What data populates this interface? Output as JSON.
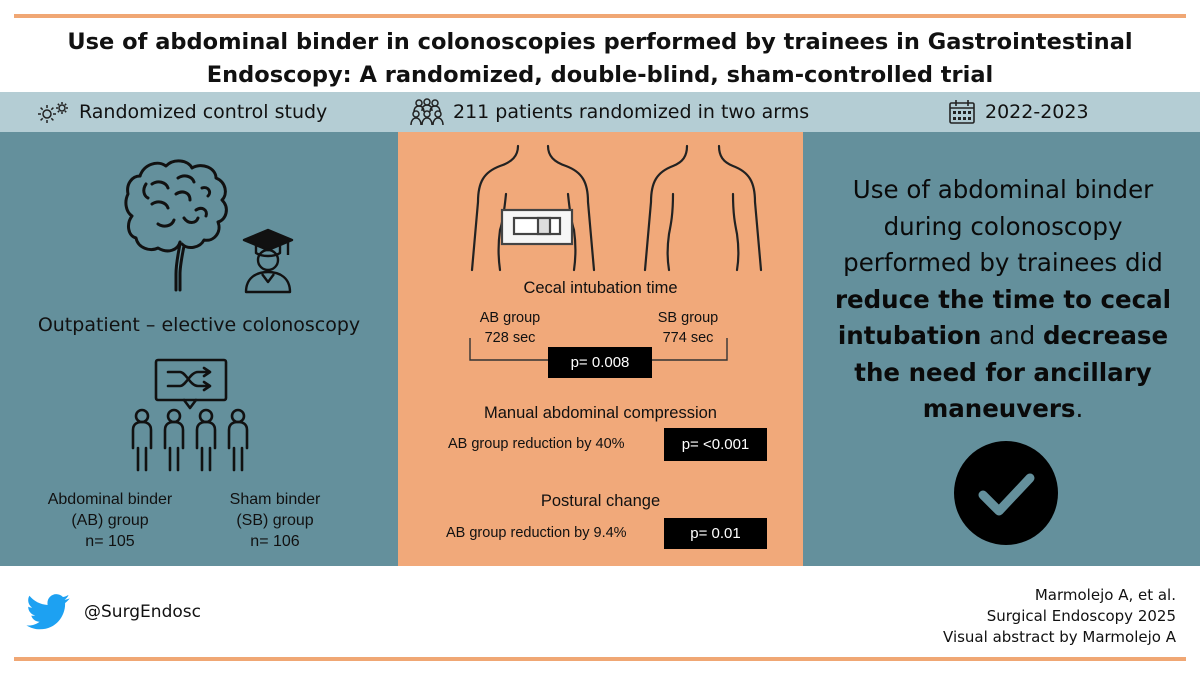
{
  "header": {
    "title_line1": "Use of abdominal binder in colonoscopies performed by trainees in Gastrointestinal",
    "title_line2": "Endoscopy: A randomized, double-blind, sham-controlled trial"
  },
  "info_bar": {
    "study_type": "Randomized control study",
    "study_type_icon": "gears-icon",
    "patients": "211 patients randomized in two arms",
    "patients_icon": "people-group-icon",
    "period": "2022-2023",
    "period_icon": "calendar-icon"
  },
  "left_panel": {
    "setting": "Outpatient – elective colonoscopy",
    "arms": [
      {
        "line1": "Abdominal binder",
        "line2": "(AB) group",
        "n": "n= 105"
      },
      {
        "line1": "Sham binder",
        "line2": "(SB) group",
        "n": "n= 106"
      }
    ],
    "icons": [
      "colon-icon",
      "graduate-icon",
      "randomization-group-icon"
    ]
  },
  "middle_panel": {
    "cecal": {
      "title": "Cecal intubation time",
      "ab_label": "AB group",
      "ab_value": "728 sec",
      "sb_label": "SB group",
      "sb_value": "774 sec",
      "p_value": "p= 0.008"
    },
    "compression": {
      "title": "Manual abdominal compression",
      "result": "AB group reduction by 40%",
      "p_value": "p= <0.001"
    },
    "postural": {
      "title": "Postural change",
      "result": "AB group reduction by 9.4%",
      "p_value": "p= 0.01"
    },
    "icons": [
      "torso-with-binder-icon",
      "torso-back-icon"
    ]
  },
  "right_panel": {
    "conclusion_parts": [
      "Use of abdominal binder during colonoscopy performed by trainees did ",
      "reduce the time to cecal intubation",
      " and ",
      "decrease the need for ancillary maneuvers",
      "."
    ],
    "icon": "checkmark-circle-icon"
  },
  "footer": {
    "handle": "@SurgEndosc",
    "handle_icon": "twitter-bird-icon",
    "citation_line1": "Marmolejo A, et al.",
    "citation_line2": "Surgical Endoscopy 2025",
    "citation_line3": "Visual abstract by Marmolejo A"
  },
  "colors": {
    "accent_orange": "#f1a97a",
    "panel_teal": "#64909c",
    "info_bar": "#b4cdd4",
    "twitter_blue": "#1da1f2"
  }
}
